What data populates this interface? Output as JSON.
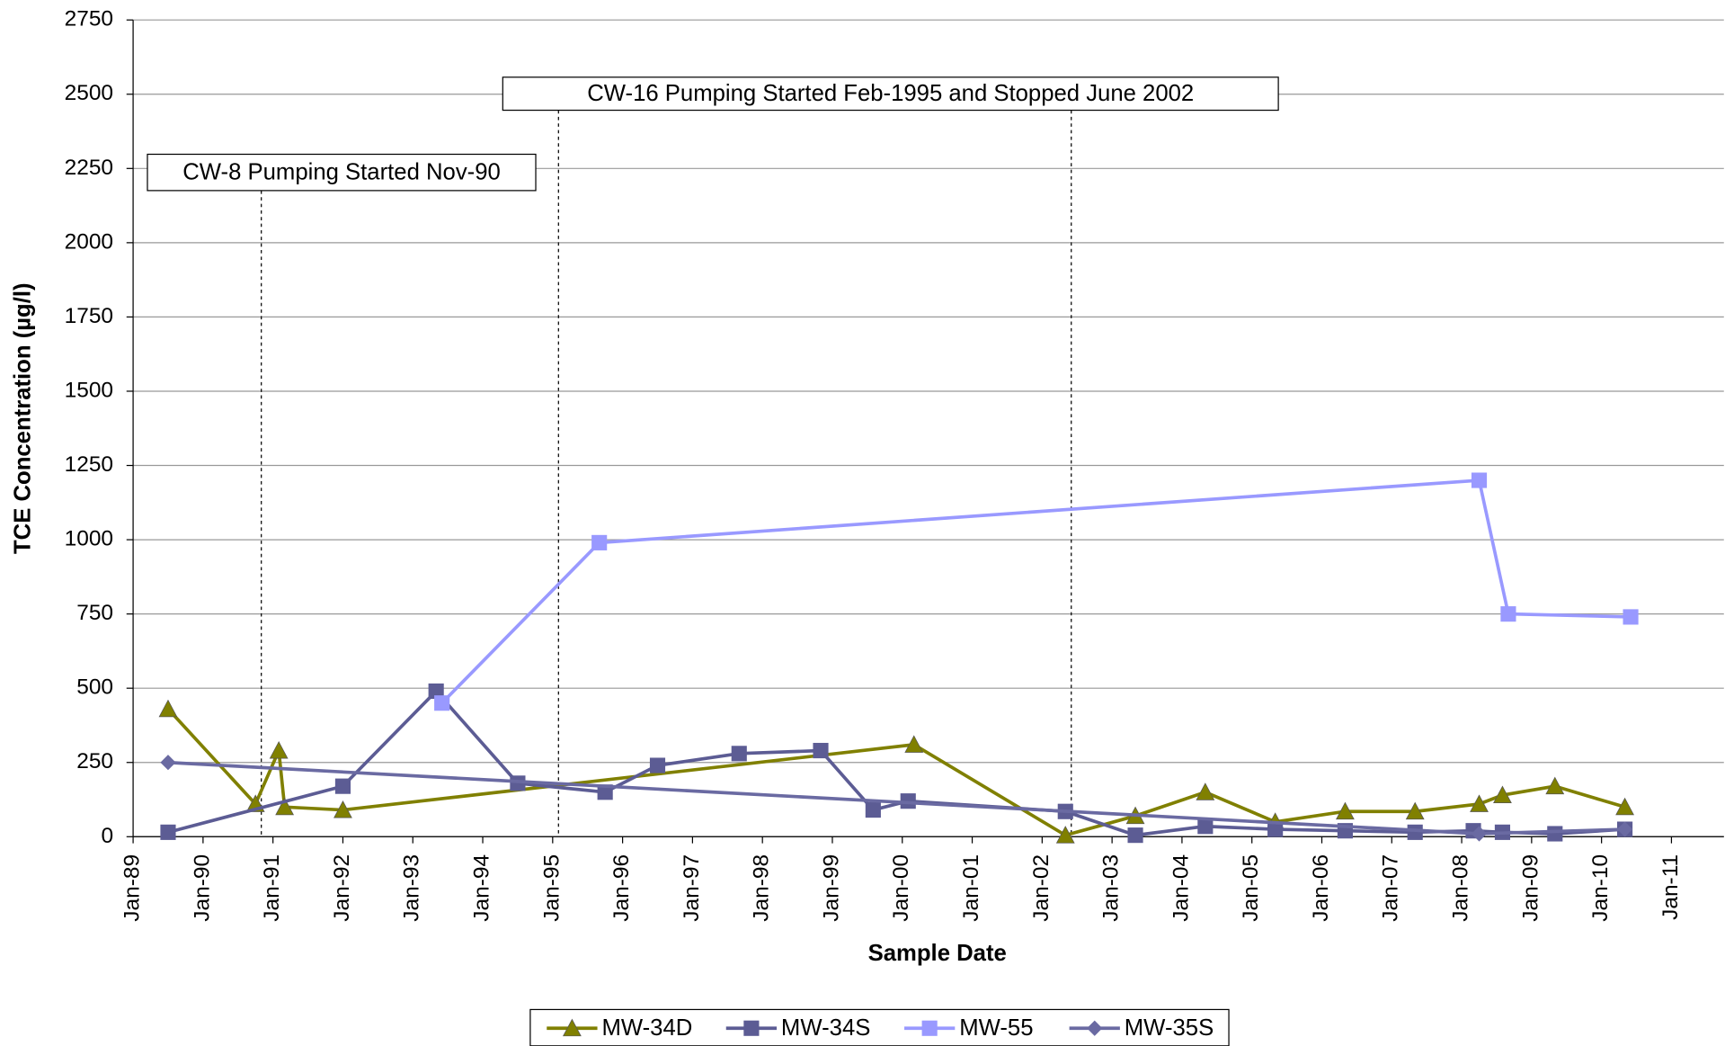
{
  "chart_data": {
    "type": "line",
    "x_label": "Sample Date",
    "y_label": "TCE Concentration (µg/l)",
    "xlim": [
      "1989-01",
      "2011-10"
    ],
    "ylim": [
      0,
      2750
    ],
    "yticks": [
      0,
      250,
      500,
      750,
      1000,
      1250,
      1500,
      1750,
      2000,
      2250,
      2500,
      2750
    ],
    "xticks": [
      {
        "value": "1989-01",
        "label": "Jan-89"
      },
      {
        "value": "1990-01",
        "label": "Jan-90"
      },
      {
        "value": "1991-01",
        "label": "Jan-91"
      },
      {
        "value": "1992-01",
        "label": "Jan-92"
      },
      {
        "value": "1993-01",
        "label": "Jan-93"
      },
      {
        "value": "1994-01",
        "label": "Jan-94"
      },
      {
        "value": "1995-01",
        "label": "Jan-95"
      },
      {
        "value": "1996-01",
        "label": "Jan-96"
      },
      {
        "value": "1997-01",
        "label": "Jan-97"
      },
      {
        "value": "1998-01",
        "label": "Jan-98"
      },
      {
        "value": "1999-01",
        "label": "Jan-99"
      },
      {
        "value": "2000-01",
        "label": "Jan-00"
      },
      {
        "value": "2001-01",
        "label": "Jan-01"
      },
      {
        "value": "2002-01",
        "label": "Jan-02"
      },
      {
        "value": "2003-01",
        "label": "Jan-03"
      },
      {
        "value": "2004-01",
        "label": "Jan-04"
      },
      {
        "value": "2005-01",
        "label": "Jan-05"
      },
      {
        "value": "2006-01",
        "label": "Jan-06"
      },
      {
        "value": "2007-01",
        "label": "Jan-07"
      },
      {
        "value": "2008-01",
        "label": "Jan-08"
      },
      {
        "value": "2009-01",
        "label": "Jan-09"
      },
      {
        "value": "2010-01",
        "label": "Jan-10"
      },
      {
        "value": "2011-01",
        "label": "Jan-11"
      }
    ],
    "grid": true,
    "legend": "bottom",
    "annotations": [
      {
        "text": "CW-8 Pumping Started Nov-90",
        "x": [
          "1990-11"
        ]
      },
      {
        "text": "CW-16 Pumping Started Feb-1995 and Stopped June 2002",
        "x": [
          "1995-02",
          "2002-06"
        ]
      }
    ],
    "series": [
      {
        "name": "MW-34D",
        "color": "#808000",
        "marker": "triangle",
        "x": [
          "1989-07",
          "1990-10",
          "1991-02",
          "1991-03",
          "1992-01",
          "2000-03",
          "2002-05",
          "2003-05",
          "2004-05",
          "2005-05",
          "2006-05",
          "2007-05",
          "2008-04",
          "2008-08",
          "2009-05",
          "2010-05"
        ],
        "values": [
          430,
          110,
          290,
          100,
          90,
          310,
          5,
          70,
          150,
          50,
          85,
          85,
          110,
          140,
          170,
          100
        ]
      },
      {
        "name": "MW-34S",
        "color": "#5c5c94",
        "marker": "square",
        "x": [
          "1989-07",
          "1992-01",
          "1993-05",
          "1994-07",
          "1995-10",
          "1996-07",
          "1997-09",
          "1998-11",
          "1999-08",
          "2000-02",
          "2002-05",
          "2003-05",
          "2004-05",
          "2005-05",
          "2006-05",
          "2007-05",
          "2008-03",
          "2008-08",
          "2009-05",
          "2010-05"
        ],
        "values": [
          15,
          170,
          490,
          180,
          150,
          240,
          280,
          290,
          90,
          120,
          85,
          5,
          35,
          25,
          20,
          15,
          20,
          15,
          10,
          25
        ]
      },
      {
        "name": "MW-55",
        "color": "#9999ff",
        "marker": "square",
        "x": [
          "1993-06",
          "1995-09",
          "2008-04",
          "2008-09",
          "2010-06"
        ],
        "values": [
          450,
          990,
          1200,
          750,
          740
        ]
      },
      {
        "name": "MW-35S",
        "color": "#6a6aa2",
        "marker": "diamond",
        "x": [
          "1989-07",
          "2008-04",
          "2010-05"
        ],
        "values": [
          250,
          10,
          25
        ]
      }
    ]
  }
}
